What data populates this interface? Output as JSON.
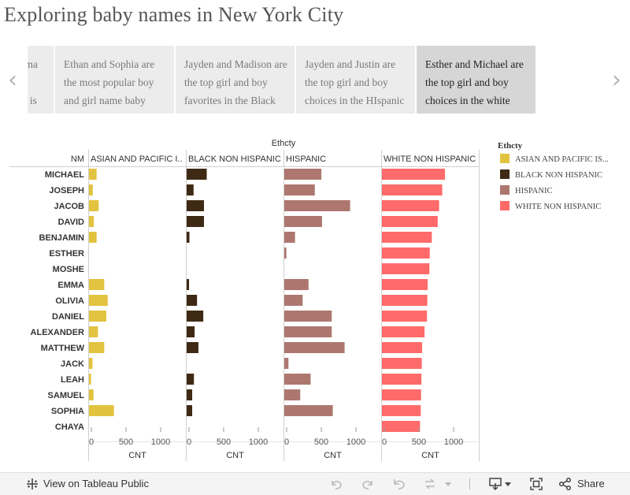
{
  "title": "Exploring baby names in New York City",
  "story_points": [
    "Sophie, Olivia, Emma are popular across ethnicities but there is",
    "Ethan and Sophia are the most popular boy and girl name baby",
    "Jayden and Madison are the top girl and boy favorites in the Black",
    "Jayden and Justin are the top girl and boy choices in the HIspanic",
    "Esther and Michael are the top girl and boy choices in the white"
  ],
  "active_story_point": 4,
  "icons": {
    "prev": "chevron-left-icon",
    "next": "chevron-right-icon",
    "tableau": "tableau-public-icon",
    "undo": "undo-icon",
    "redo": "redo-icon",
    "revert": "revert-icon",
    "refresh": "refresh-icon",
    "download": "download-icon",
    "fullscreen": "fullscreen-icon",
    "share": "share-icon"
  },
  "footer": {
    "view_on_tableau": "View on Tableau Public",
    "share": "Share"
  },
  "chart_data": {
    "type": "bar",
    "orientation": "horizontal",
    "column_header": "Ethcty",
    "row_header": "NM",
    "xlabel": "CNT",
    "xlim": [
      0,
      1100
    ],
    "x_ticks": [
      "0",
      "500",
      "1000"
    ],
    "categories": [
      "MICHAEL",
      "JOSEPH",
      "JACOB",
      "DAVID",
      "BENJAMIN",
      "ESTHER",
      "MOSHE",
      "EMMA",
      "OLIVIA",
      "DANIEL",
      "ALEXANDER",
      "MATTHEW",
      "JACK",
      "LEAH",
      "SAMUEL",
      "SOPHIA",
      "CHAYA"
    ],
    "series": [
      {
        "name": "ASIAN AND PACIFIC ISLANDER",
        "header": "ASIAN AND PACIFIC I..",
        "legend": "ASIAN AND PACIFIC IS...",
        "color": "#e2c33f",
        "values": [
          110,
          55,
          140,
          70,
          110,
          null,
          null,
          220,
          270,
          250,
          130,
          220,
          50,
          30,
          65,
          360,
          null
        ]
      },
      {
        "name": "BLACK NON HISPANIC",
        "header": "BLACK NON HISPANIC",
        "legend": "BLACK NON HISPANIC",
        "color": "#3e2a14",
        "values": [
          290,
          100,
          250,
          250,
          40,
          null,
          null,
          35,
          150,
          240,
          115,
          170,
          null,
          105,
          80,
          80,
          null
        ]
      },
      {
        "name": "HISPANIC",
        "header": "HISPANIC",
        "legend": "HISPANIC",
        "color": "#ad776f",
        "values": [
          535,
          440,
          950,
          545,
          155,
          30,
          null,
          350,
          265,
          685,
          685,
          870,
          60,
          380,
          230,
          700,
          null
        ]
      },
      {
        "name": "WHITE NON HISPANIC",
        "header": "WHITE NON HISPANIC",
        "legend": "WHITE NON HISPANIC",
        "color": "#ff6b6a",
        "values": [
          910,
          870,
          825,
          805,
          720,
          690,
          685,
          660,
          655,
          650,
          615,
          580,
          575,
          570,
          565,
          560,
          550
        ]
      }
    ],
    "legend_title": "Ethcty",
    "legend_position": "right",
    "grid": false
  }
}
